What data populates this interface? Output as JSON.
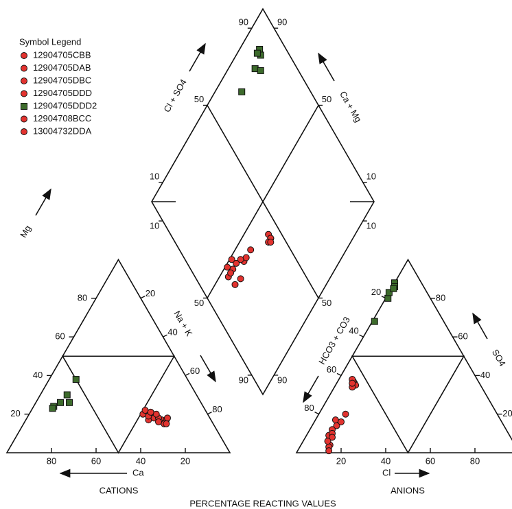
{
  "chart_data": {
    "type": "piper",
    "legend_title": "Symbol Legend",
    "series": [
      {
        "name": "12904705CBB",
        "color": "#e2332f",
        "marker": "circle",
        "ca": [
          24,
          22,
          28
        ],
        "mg": [
          19,
          17,
          17
        ],
        "cl": [
          9,
          8,
          11
        ],
        "so4": [
          17,
          36,
          14
        ]
      },
      {
        "name": "12904705DAB",
        "color": "#e2332f",
        "marker": "circle",
        "ca": [
          26,
          21,
          25
        ],
        "mg": [
          20,
          16,
          18
        ],
        "cl": [
          10,
          7,
          12
        ],
        "so4": [
          12,
          37,
          20
        ]
      },
      {
        "name": "12904705DBC",
        "color": "#e2332f",
        "marker": "circle",
        "ca": [
          25,
          20,
          29
        ],
        "mg": [
          21,
          17,
          20
        ],
        "cl": [
          10,
          6,
          13
        ],
        "so4": [
          9,
          38,
          4
        ]
      },
      {
        "name": "12904705DDD",
        "color": "#e2332f",
        "marker": "circle",
        "ca": [
          23,
          22,
          27
        ],
        "mg": [
          18,
          15,
          22
        ],
        "cl": [
          13,
          9,
          11
        ],
        "so4": [
          3,
          35,
          10
        ]
      },
      {
        "name": "12904705DDD2",
        "color": "#3d6b2c",
        "marker": "square",
        "ca": [
          67,
          63,
          50,
          58,
          59,
          68
        ],
        "mg": [
          24,
          26,
          38,
          30,
          26,
          23
        ],
        "cl": [
          0,
          1,
          1,
          1,
          0,
          1
        ],
        "so4": [
          88,
          86,
          80,
          68,
          83,
          85
        ]
      },
      {
        "name": "12904708BCC",
        "color": "#e2332f",
        "marker": "circle",
        "ca": [
          27,
          19,
          23
        ],
        "mg": [
          19,
          18,
          20
        ],
        "cl": [
          14,
          8,
          12
        ],
        "so4": [
          1,
          34,
          16
        ]
      },
      {
        "name": "13004732DDA",
        "color": "#e2332f",
        "marker": "circle",
        "ca": [
          24,
          25,
          21
        ],
        "mg": [
          16,
          21,
          15
        ],
        "cl": [
          12,
          11,
          7
        ],
        "so4": [
          8,
          6,
          36
        ]
      }
    ],
    "ticks": [
      20,
      40,
      60,
      80
    ],
    "diamond_ticks": [
      10,
      50,
      90
    ],
    "labels": {
      "mg": "Mg",
      "na_k": "Na + K",
      "ca": "Ca",
      "cations": "CATIONS",
      "hco3_co3": "HCO3 + CO3",
      "so4": "SO4",
      "cl": "Cl",
      "anions": "ANIONS",
      "cl_so4": "Cl + SO4",
      "ca_mg": "Ca + Mg",
      "footer": "PERCENTAGE REACTING VALUES"
    }
  }
}
